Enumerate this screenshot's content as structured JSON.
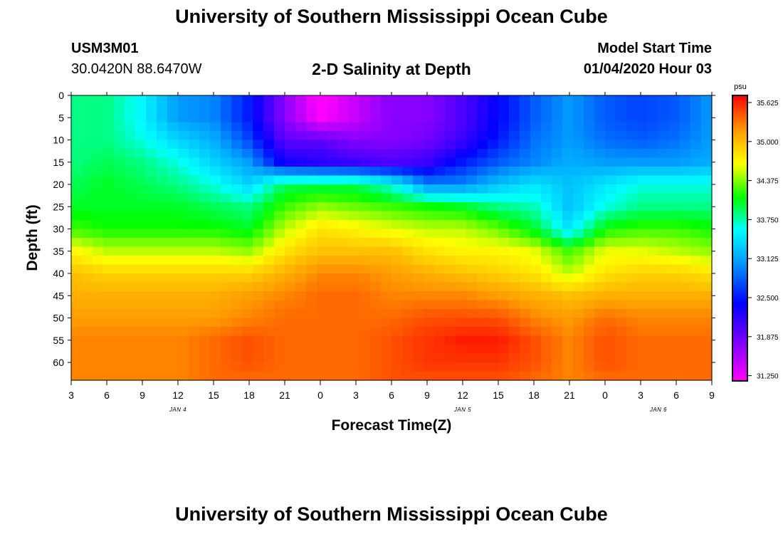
{
  "title": "University of Southern Mississippi Ocean Cube",
  "footer_title": "University of Southern Mississippi Ocean Cube",
  "station": {
    "id": "USM3M01",
    "coords": "30.0420N 88.6470W"
  },
  "subtitle": "2-D Salinity at Depth",
  "model": {
    "label": "Model Start Time",
    "date": "01/04/2020 Hour 03"
  },
  "chart_data": {
    "type": "heatmap",
    "title": "2-D Salinity at Depth",
    "xlabel": "Forecast Time(Z)",
    "ylabel": "Depth (ft)",
    "x_hours": [
      0,
      3,
      6,
      9,
      12,
      15,
      18,
      21,
      24,
      27,
      30,
      33,
      36,
      39,
      42,
      45,
      48,
      51,
      54
    ],
    "x_tick_labels": [
      "3",
      "6",
      "9",
      "12",
      "15",
      "18",
      "21",
      "0",
      "3",
      "6",
      "9",
      "12",
      "15",
      "18",
      "21",
      "0",
      "3",
      "6",
      "9"
    ],
    "date_labels": [
      {
        "text": "JAN 4",
        "hour": 9
      },
      {
        "text": "JAN 5",
        "hour": 33
      },
      {
        "text": "JAN 6",
        "hour": 49.5
      }
    ],
    "y_ticks": [
      0,
      5,
      10,
      15,
      20,
      25,
      30,
      35,
      40,
      45,
      50,
      55,
      60
    ],
    "ylim": [
      0,
      64
    ],
    "xlim": [
      0,
      54
    ],
    "colorbar": {
      "unit": "psu",
      "ticks": [
        "35.625",
        "35.000",
        "34.375",
        "33.750",
        "33.125",
        "32.500",
        "31.875",
        "31.250"
      ],
      "min": 31.0,
      "max": 35.8
    },
    "depths": [
      0,
      5,
      10,
      15,
      20,
      25,
      30,
      35,
      40,
      45,
      50,
      55,
      60,
      64
    ],
    "grid_values": [
      [
        33.8,
        33.8,
        33.5,
        33.0,
        32.9,
        32.4,
        31.6,
        30.9,
        31.3,
        31.6,
        31.6,
        31.9,
        32.3,
        32.7,
        33.0,
        32.7,
        32.6,
        32.7,
        33.0
      ],
      [
        33.8,
        33.8,
        33.5,
        33.0,
        32.9,
        32.4,
        31.6,
        31.0,
        31.3,
        31.6,
        31.6,
        31.9,
        32.3,
        32.7,
        33.0,
        32.7,
        32.6,
        32.7,
        33.0
      ],
      [
        33.8,
        33.8,
        33.6,
        33.3,
        33.1,
        32.6,
        31.8,
        31.8,
        31.6,
        31.6,
        31.7,
        32.0,
        32.4,
        32.8,
        33.0,
        32.8,
        32.7,
        32.8,
        33.0
      ],
      [
        33.8,
        33.9,
        33.8,
        33.6,
        33.3,
        33.0,
        32.2,
        32.1,
        32.0,
        31.9,
        32.0,
        32.4,
        32.7,
        32.9,
        33.1,
        33.0,
        33.0,
        33.0,
        33.1
      ],
      [
        33.9,
        34.0,
        33.9,
        33.8,
        33.6,
        33.3,
        33.9,
        33.9,
        33.9,
        33.6,
        32.9,
        32.9,
        33.2,
        33.4,
        33.2,
        33.4,
        33.6,
        33.6,
        33.6
      ],
      [
        34.0,
        34.0,
        34.0,
        34.0,
        33.9,
        33.8,
        34.2,
        34.4,
        34.3,
        34.2,
        34.1,
        34.0,
        33.8,
        33.7,
        33.2,
        33.6,
        33.8,
        33.8,
        33.8
      ],
      [
        34.2,
        34.1,
        34.1,
        34.1,
        34.1,
        34.0,
        34.5,
        34.8,
        34.7,
        34.6,
        34.5,
        34.5,
        34.3,
        34.0,
        33.4,
        34.1,
        34.2,
        34.2,
        34.1
      ],
      [
        34.7,
        34.5,
        34.5,
        34.5,
        34.5,
        34.4,
        34.8,
        35.0,
        35.0,
        35.0,
        34.8,
        34.7,
        34.7,
        34.6,
        34.2,
        34.6,
        34.6,
        34.5,
        34.4
      ],
      [
        35.0,
        34.9,
        34.9,
        34.9,
        34.9,
        34.9,
        35.1,
        35.3,
        35.3,
        35.2,
        35.1,
        35.0,
        34.9,
        34.8,
        34.5,
        34.8,
        34.9,
        34.9,
        34.8
      ],
      [
        35.1,
        35.1,
        35.1,
        35.1,
        35.1,
        35.2,
        35.3,
        35.4,
        35.4,
        35.3,
        35.3,
        35.3,
        35.2,
        35.1,
        35.0,
        35.1,
        35.1,
        35.1,
        35.1
      ],
      [
        35.2,
        35.2,
        35.2,
        35.2,
        35.2,
        35.3,
        35.4,
        35.4,
        35.4,
        35.4,
        35.5,
        35.5,
        35.5,
        35.3,
        35.2,
        35.4,
        35.3,
        35.3,
        35.3
      ],
      [
        35.3,
        35.3,
        35.3,
        35.3,
        35.4,
        35.5,
        35.4,
        35.4,
        35.4,
        35.5,
        35.6,
        35.7,
        35.7,
        35.5,
        35.3,
        35.5,
        35.4,
        35.4,
        35.4
      ],
      [
        35.3,
        35.3,
        35.3,
        35.3,
        35.4,
        35.5,
        35.4,
        35.4,
        35.4,
        35.5,
        35.6,
        35.6,
        35.6,
        35.5,
        35.3,
        35.5,
        35.4,
        35.4,
        35.4
      ],
      [
        35.3,
        35.3,
        35.3,
        35.3,
        35.4,
        35.4,
        35.4,
        35.4,
        35.4,
        35.5,
        35.5,
        35.5,
        35.5,
        35.4,
        35.3,
        35.4,
        35.4,
        35.4,
        35.4
      ]
    ]
  }
}
